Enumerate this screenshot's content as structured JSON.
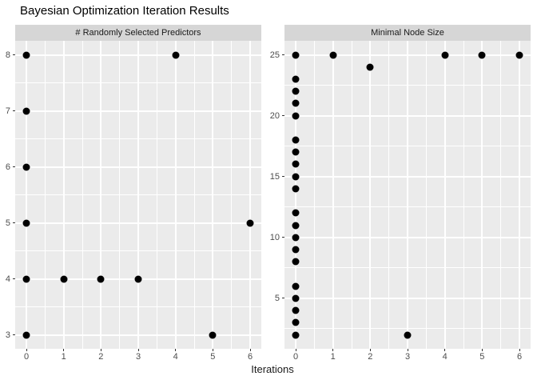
{
  "title": "Bayesian Optimization Iteration Results",
  "xlabel": "Iterations",
  "colors": {
    "panel_bg": "#EBEBEB",
    "strip_bg": "#D6D6D6",
    "grid_major": "#FFFFFF",
    "grid_minor": "#FFFFFF",
    "point": "#000000",
    "axis_text": "#4D4D4D",
    "tick_mark": "#333333",
    "title_text": "#000000"
  },
  "chart_data": [
    {
      "type": "scatter",
      "title": "# Randomly Selected Predictors",
      "xlabel": "Iterations",
      "ylabel": "",
      "x": [
        0,
        0,
        0,
        0,
        0,
        0,
        1,
        2,
        3,
        4,
        5,
        6
      ],
      "y": [
        3,
        4,
        5,
        6,
        7,
        8,
        4,
        4,
        4,
        8,
        3,
        5
      ],
      "xlim": [
        -0.3,
        6.3
      ],
      "ylim": [
        2.75,
        8.25
      ],
      "x_ticks": [
        0,
        1,
        2,
        3,
        4,
        5,
        6
      ],
      "y_ticks": [
        3,
        4,
        5,
        6,
        7,
        8
      ],
      "x_minor": [
        0.5,
        1.5,
        2.5,
        3.5,
        4.5,
        5.5
      ],
      "y_minor": [
        3.5,
        4.5,
        5.5,
        6.5,
        7.5
      ],
      "grid": true,
      "legend": "none"
    },
    {
      "type": "scatter",
      "title": "Minimal Node Size",
      "xlabel": "Iterations",
      "ylabel": "",
      "x": [
        0,
        0,
        0,
        0,
        0,
        0,
        0,
        0,
        0,
        0,
        0,
        0,
        0,
        0,
        0,
        0,
        0,
        0,
        0,
        0,
        1,
        2,
        3,
        4,
        5,
        6
      ],
      "y": [
        2,
        3,
        4,
        5,
        6,
        8,
        9,
        10,
        11,
        12,
        14,
        15,
        16,
        17,
        18,
        20,
        21,
        22,
        23,
        25,
        25,
        24,
        2,
        25,
        25,
        25
      ],
      "xlim": [
        -0.3,
        6.3
      ],
      "ylim": [
        0.85,
        26.15
      ],
      "x_ticks": [
        0,
        1,
        2,
        3,
        4,
        5,
        6
      ],
      "y_ticks": [
        5,
        10,
        15,
        20,
        25
      ],
      "x_minor": [
        0.5,
        1.5,
        2.5,
        3.5,
        4.5,
        5.5
      ],
      "y_minor": [
        2.5,
        7.5,
        12.5,
        17.5,
        22.5
      ],
      "grid": true,
      "legend": "none"
    }
  ]
}
